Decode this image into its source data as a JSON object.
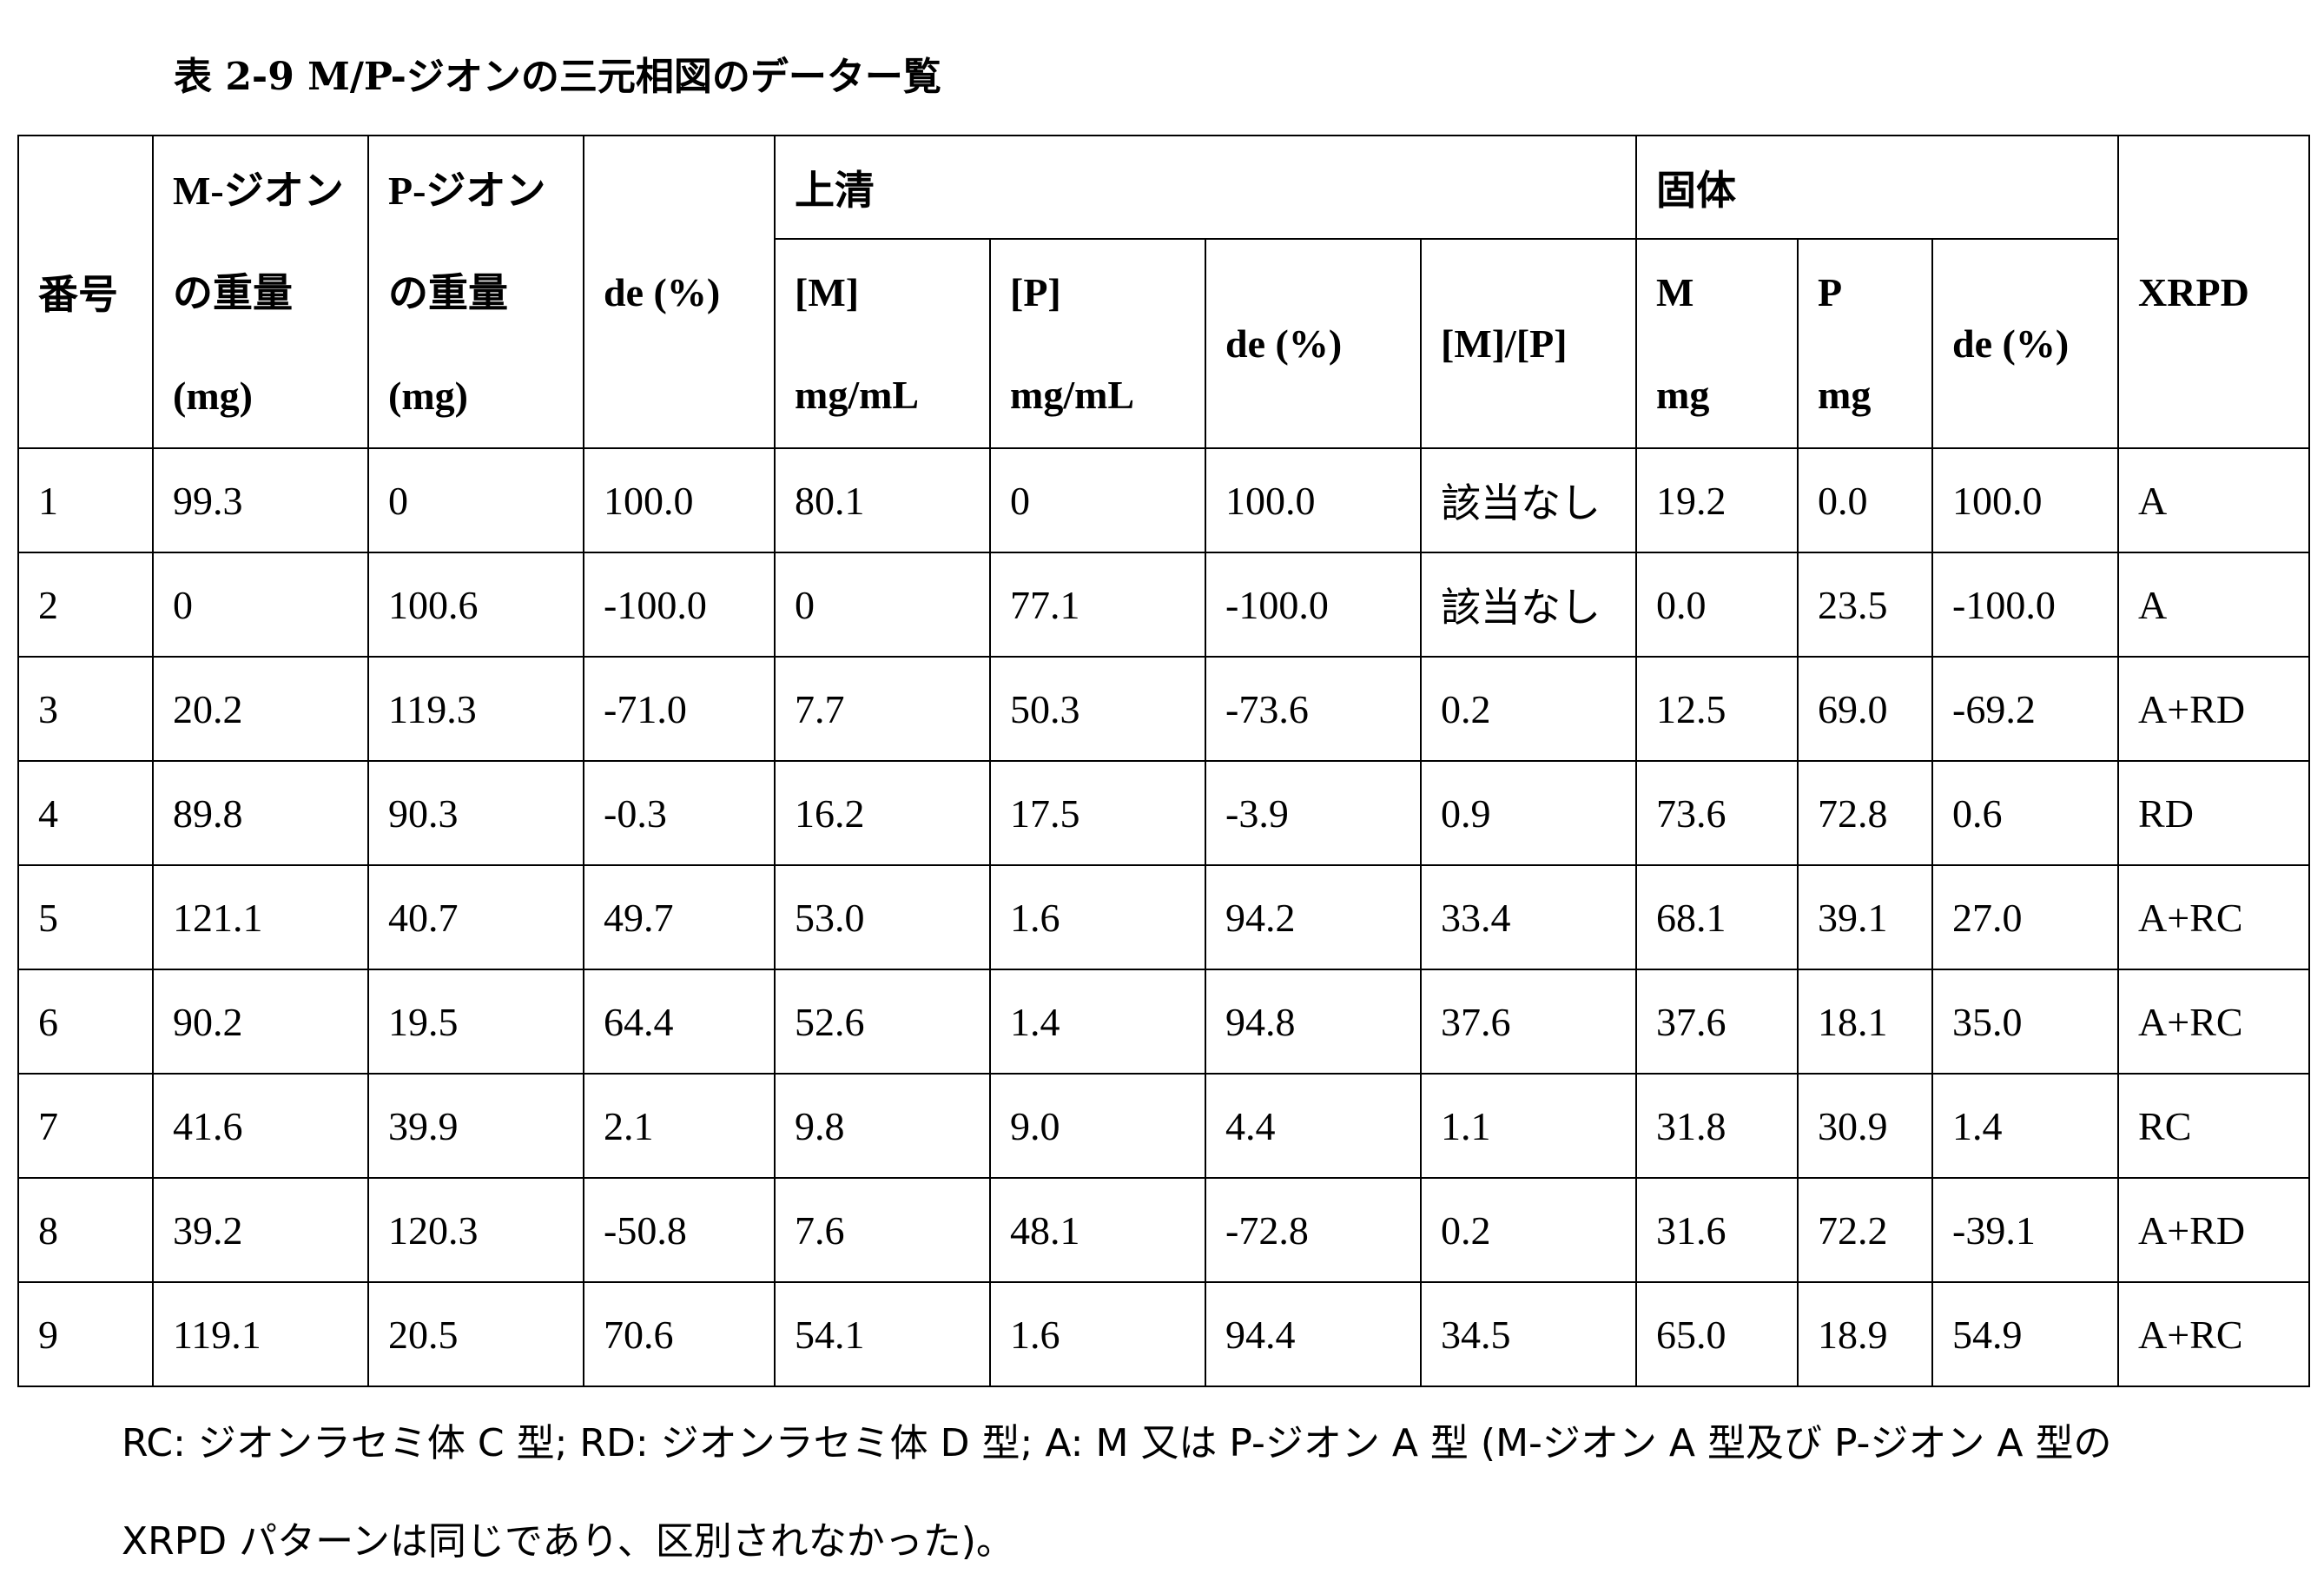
{
  "title": "表 2-9 M/P-ジオンの三元相図のデーター覧",
  "headers": {
    "no": "番号",
    "m_weight": [
      "M-ジオン",
      "の重量",
      "(mg)"
    ],
    "p_weight": [
      "P-ジオン",
      "の重量",
      "(mg)"
    ],
    "de": "de (%)",
    "supernatant": "上清",
    "sup_m": [
      "[M]",
      "mg/mL"
    ],
    "sup_p": [
      "[P]",
      "mg/mL"
    ],
    "sup_de": "de (%)",
    "sup_ratio": "[M]/[P]",
    "solid": "固体",
    "sol_m": [
      "M",
      "mg"
    ],
    "sol_p": [
      "P",
      "mg"
    ],
    "sol_de": "de (%)",
    "xrpd": "XRPD"
  },
  "rows": [
    [
      "1",
      "99.3",
      "0",
      "100.0",
      "80.1",
      "0",
      "100.0",
      "該当なし",
      "19.2",
      "0.0",
      "100.0",
      "A"
    ],
    [
      "2",
      "0",
      "100.6",
      "-100.0",
      "0",
      "77.1",
      "-100.0",
      "該当なし",
      "0.0",
      "23.5",
      "-100.0",
      "A"
    ],
    [
      "3",
      "20.2",
      "119.3",
      "-71.0",
      "7.7",
      "50.3",
      "-73.6",
      "0.2",
      "12.5",
      "69.0",
      "-69.2",
      "A+RD"
    ],
    [
      "4",
      "89.8",
      "90.3",
      "-0.3",
      "16.2",
      "17.5",
      "-3.9",
      "0.9",
      "73.6",
      "72.8",
      "0.6",
      "RD"
    ],
    [
      "5",
      "121.1",
      "40.7",
      "49.7",
      "53.0",
      "1.6",
      "94.2",
      "33.4",
      "68.1",
      "39.1",
      "27.0",
      "A+RC"
    ],
    [
      "6",
      "90.2",
      "19.5",
      "64.4",
      "52.6",
      "1.4",
      "94.8",
      "37.6",
      "37.6",
      "18.1",
      "35.0",
      "A+RC"
    ],
    [
      "7",
      "41.6",
      "39.9",
      "2.1",
      "9.8",
      "9.0",
      "4.4",
      "1.1",
      "31.8",
      "30.9",
      "1.4",
      "RC"
    ],
    [
      "8",
      "39.2",
      "120.3",
      "-50.8",
      "7.6",
      "48.1",
      "-72.8",
      "0.2",
      "31.6",
      "72.2",
      "-39.1",
      "A+RD"
    ],
    [
      "9",
      "119.1",
      "20.5",
      "70.6",
      "54.1",
      "1.6",
      "94.4",
      "34.5",
      "65.0",
      "18.9",
      "54.9",
      "A+RC"
    ]
  ],
  "notes": [
    "RC:  ジオンラセミ体 C 型; RD:  ジオンラセミ体 D 型; A: M 又は P-ジオン A 型  (M-ジオン A 型及び  P-ジオン  A 型の",
    "XRPD パターンは同じであり、区別されなかった)。"
  ]
}
